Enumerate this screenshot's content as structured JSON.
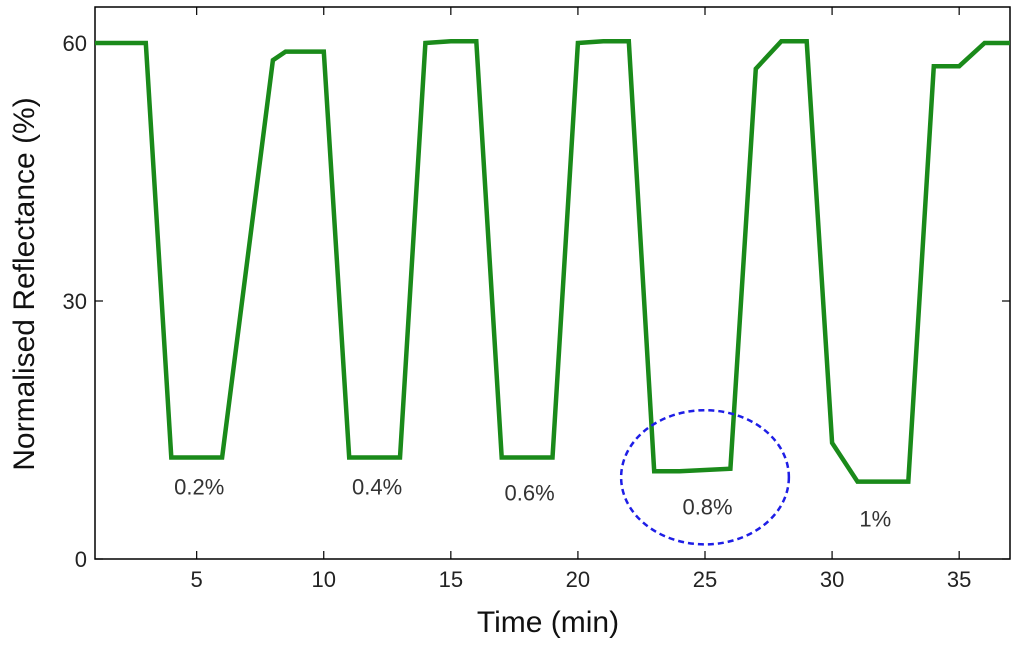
{
  "chart_data": {
    "type": "line",
    "xlabel": "Time (min)",
    "ylabel": "Normalised Reflectance (%)",
    "xlim": [
      1,
      37
    ],
    "ylim": [
      0,
      62
    ],
    "xticks": [
      5,
      10,
      15,
      20,
      25,
      30,
      35
    ],
    "yticks": [
      0,
      30,
      60
    ],
    "grid": false,
    "line_color": "#1a8a1a",
    "series": [
      {
        "x": [
          1,
          3,
          4,
          6,
          8,
          8.5,
          9,
          10,
          11,
          13,
          14,
          15,
          16,
          17,
          19,
          20,
          21,
          22,
          23,
          24,
          26,
          27,
          28,
          29,
          30,
          31,
          33,
          34,
          35,
          36,
          37
        ],
        "y": [
          60,
          60,
          11.8,
          11.8,
          58,
          59,
          59,
          59,
          11.8,
          11.8,
          60,
          60.2,
          60.2,
          11.8,
          11.8,
          60,
          60.2,
          60.2,
          10.2,
          10.2,
          10.5,
          57,
          60.2,
          60.2,
          13.5,
          9,
          9,
          57.3,
          57.3,
          60,
          60
        ]
      }
    ],
    "annotations": [
      {
        "label": "0.2%",
        "x": 5.1,
        "y": 7.5
      },
      {
        "label": "0.4%",
        "x": 12.1,
        "y": 7.5
      },
      {
        "label": "0.6%",
        "x": 18.1,
        "y": 6.8
      },
      {
        "label": "0.8%",
        "x": 25.1,
        "y": 5.2
      },
      {
        "label": "1%",
        "x": 31.7,
        "y": 3.8
      }
    ],
    "highlight_ellipse": {
      "cx": 25,
      "cy": 9.5,
      "rx": 3.3,
      "ry": 7.8,
      "color": "#1e1ee6"
    }
  }
}
